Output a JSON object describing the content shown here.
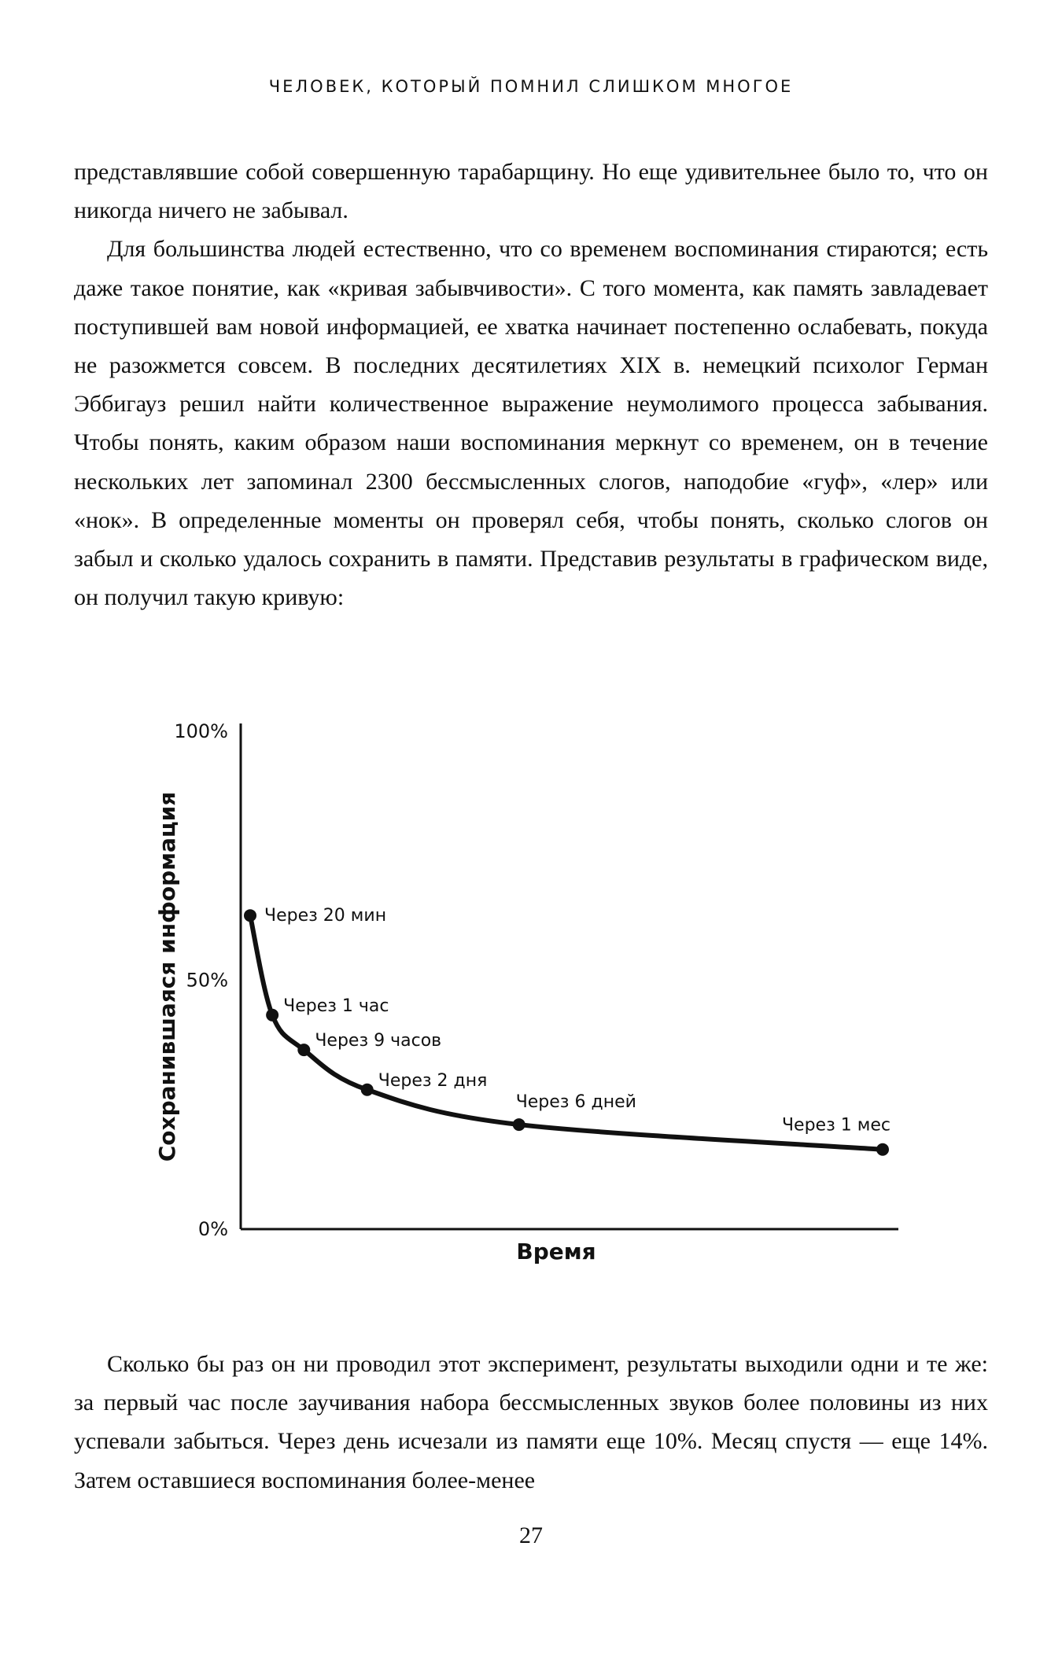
{
  "running_head": "ЧЕЛОВЕК, КОТОРЫЙ ПОМНИЛ СЛИШКОМ МНОГОЕ",
  "paragraphs_top": [
    "представлявшие собой совершенную тарабарщину. Но еще удивительнее было то, что он никогда ничего не забывал.",
    "Для большинства людей естественно, что со временем воспоминания стираются; есть даже такое понятие, как «кривая забывчивости». С того момента, как память завладевает поступившей вам новой информацией, ее хватка начинает постепенно ослабевать, покуда не разожмется совсем. В последних десятилетиях XIX в. немецкий психолог Герман Эббигауз решил найти количественное выражение неумолимого процесса забывания. Чтобы понять, каким образом наши воспоминания меркнут со временем, он в течение нескольких лет запоминал 2300 бессмысленных слогов, наподобие «гуф», «лер» или «нок». В определенные моменты он проверял себя, чтобы понять, сколько слогов он забыл и сколько удалось сохранить в памяти. Представив результаты в графическом виде, он получил такую кривую:"
  ],
  "paragraphs_bottom": [
    "Сколько бы раз он ни проводил этот эксперимент, результаты выходили одни и те же: за первый час после заучивания набора бессмысленных звуков более половины из них успевали забыться. Через день исчезали из памяти еще 10%. Месяц спустя — еще 14%. Затем оставшиеся воспоминания более-менее"
  ],
  "page_number": "27",
  "chart_data": {
    "type": "line",
    "title": "",
    "xlabel": "Время",
    "ylabel": "Сохранившаяся информация",
    "y_ticks": [
      "100%",
      "50%",
      "0%"
    ],
    "y_tick_values": [
      100,
      50,
      0
    ],
    "ylim": [
      0,
      100
    ],
    "grid": false,
    "points": [
      {
        "label": "Через 20 мин",
        "t": 0.0,
        "value": 63
      },
      {
        "label": "Через 1 час",
        "t": 0.035,
        "value": 43
      },
      {
        "label": "Через 9 часов",
        "t": 0.085,
        "value": 36
      },
      {
        "label": "Через 2 дня",
        "t": 0.185,
        "value": 28
      },
      {
        "label": "Через 6 дней",
        "t": 0.425,
        "value": 21
      },
      {
        "label": "Через 1 мес",
        "t": 1.0,
        "value": 16
      }
    ],
    "line_color": "#111111"
  }
}
